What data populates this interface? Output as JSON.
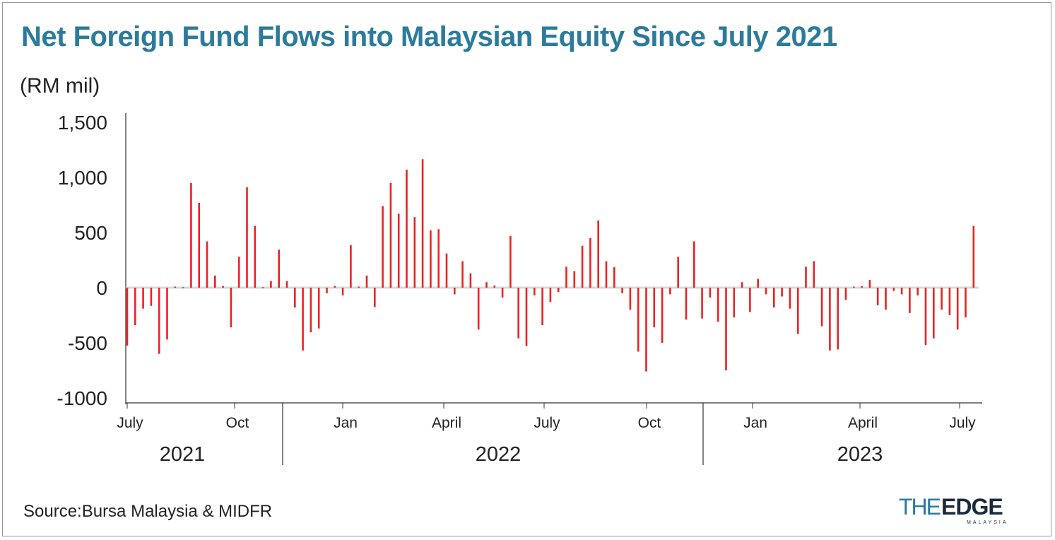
{
  "chart_data": {
    "type": "bar",
    "title": "Net Foreign Fund Flows into Malaysian Equity Since July 2021",
    "ylabel": "(RM mil)",
    "ylim": [
      -1000,
      1500
    ],
    "yticks": [
      "1,500",
      "1,000",
      "500",
      "0",
      "-500",
      "-1000"
    ],
    "ytick_values": [
      1500,
      1000,
      500,
      0,
      -500,
      -1000
    ],
    "xticks": [
      "July",
      "Oct",
      "Jan",
      "April",
      "July",
      "Oct",
      "Jan",
      "April",
      "July"
    ],
    "years": [
      "2021",
      "2022",
      "2023"
    ],
    "grid": false,
    "bar_color": "#e8251f",
    "values": [
      -525,
      -340,
      -190,
      -165,
      -600,
      -470,
      10,
      5,
      950,
      770,
      420,
      110,
      15,
      -360,
      280,
      910,
      560,
      5,
      60,
      345,
      60,
      -180,
      -570,
      -405,
      -370,
      -50,
      15,
      -70,
      385,
      10,
      110,
      -175,
      740,
      950,
      670,
      1070,
      640,
      1165,
      520,
      530,
      310,
      -60,
      240,
      130,
      -380,
      50,
      20,
      -90,
      470,
      -460,
      -530,
      -70,
      -340,
      -130,
      -40,
      190,
      150,
      380,
      450,
      610,
      240,
      185,
      -50,
      -200,
      -580,
      -760,
      -360,
      -500,
      -60,
      280,
      -290,
      420,
      -280,
      -90,
      -310,
      -750,
      -270,
      50,
      -220,
      80,
      -60,
      -180,
      -80,
      -190,
      -420,
      190,
      240,
      -350,
      -570,
      -560,
      -110,
      10,
      15,
      70,
      -160,
      -200,
      -30,
      -60,
      -230,
      -70,
      -520,
      -460,
      -200,
      -250,
      -380,
      -270,
      560
    ]
  },
  "source": "Source:Bursa Malaysia & MIDFR",
  "logo": {
    "text": "THEEDGE",
    "sub": "MALAYSIA",
    "colors": {
      "the": "#2c7b9b",
      "edge": "#1a2a3a"
    }
  },
  "title_color": "#2c7b9b"
}
